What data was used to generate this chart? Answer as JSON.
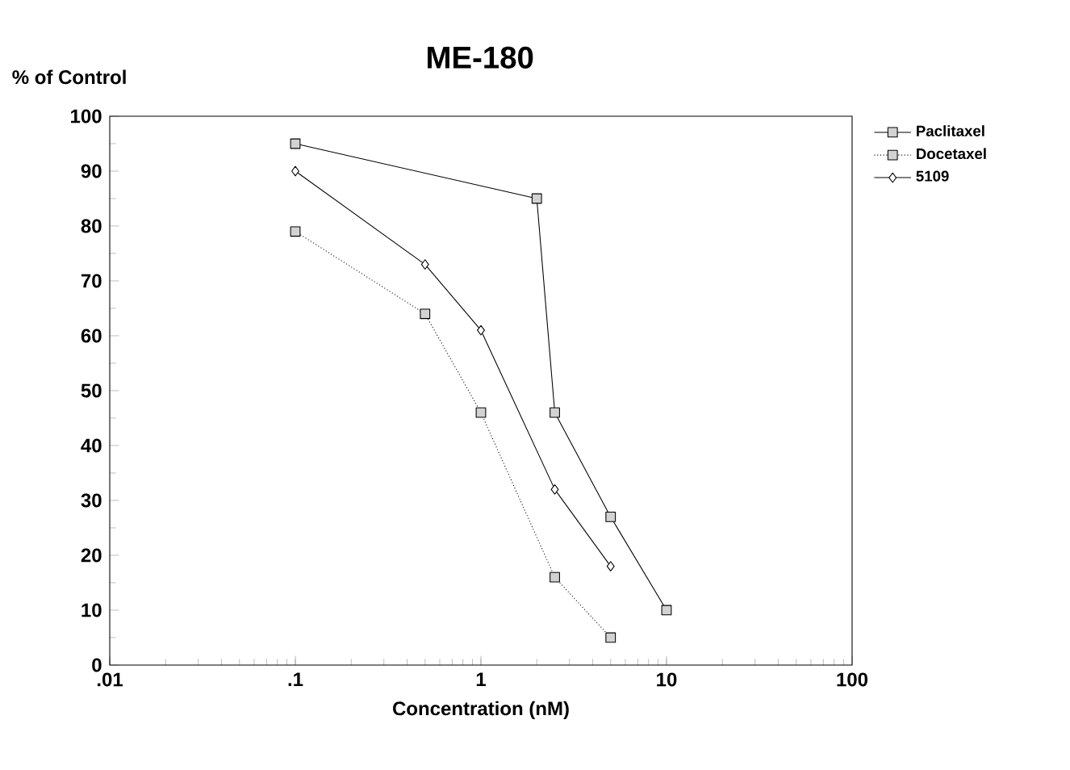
{
  "chart_data": {
    "type": "line",
    "title": "ME-180",
    "ylabel": "% of Control",
    "xlabel": "Concentration (nM)",
    "log": "x",
    "xlim": [
      0.01,
      100
    ],
    "xticks": [
      {
        "value": 0.01,
        "label": ".01"
      },
      {
        "value": 0.1,
        "label": ".1"
      },
      1,
      10,
      100
    ],
    "ylim": [
      0,
      100
    ],
    "yticks": [
      0,
      10,
      20,
      30,
      40,
      50,
      60,
      70,
      80,
      90,
      100
    ],
    "grid": false,
    "legend": "top right",
    "series": [
      {
        "name": "Paclitaxel",
        "color": "#000000",
        "marker": "square",
        "line_style": "solid",
        "x": [
          0.1,
          2,
          2.5,
          5,
          10
        ],
        "values": [
          95,
          85,
          46,
          27,
          10
        ]
      },
      {
        "name": "Docetaxel",
        "color": "#000000",
        "marker": "square",
        "line_style": "dotted",
        "x": [
          0.1,
          0.5,
          1,
          2.5,
          5
        ],
        "values": [
          79,
          64,
          46,
          16,
          5
        ]
      },
      {
        "name": "5109",
        "color": "#000000",
        "marker": "diamond",
        "line_style": "solid",
        "x": [
          0.1,
          0.5,
          1,
          2.5,
          5
        ],
        "values": [
          90,
          73,
          61,
          32,
          18
        ]
      }
    ]
  }
}
